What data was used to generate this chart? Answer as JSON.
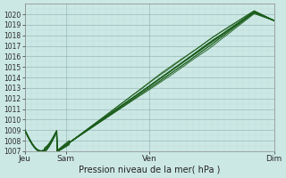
{
  "xlabel": "Pression niveau de la mer( hPa )",
  "bg_color": "#cce8e4",
  "plot_bg_color": "#cce8e4",
  "grid_color_major": "#99bbbb",
  "grid_color_minor": "#bbdddd",
  "line_color": "#1a5c1a",
  "ylim": [
    1007,
    1021
  ],
  "yticks": [
    1007,
    1008,
    1009,
    1010,
    1011,
    1012,
    1013,
    1014,
    1015,
    1016,
    1017,
    1018,
    1019,
    1020
  ],
  "xtick_labels": [
    "Jeu",
    "Sam",
    "Ven",
    "Dim"
  ],
  "xtick_positions": [
    0.0,
    0.165,
    0.5,
    1.0
  ],
  "n_points": 400
}
